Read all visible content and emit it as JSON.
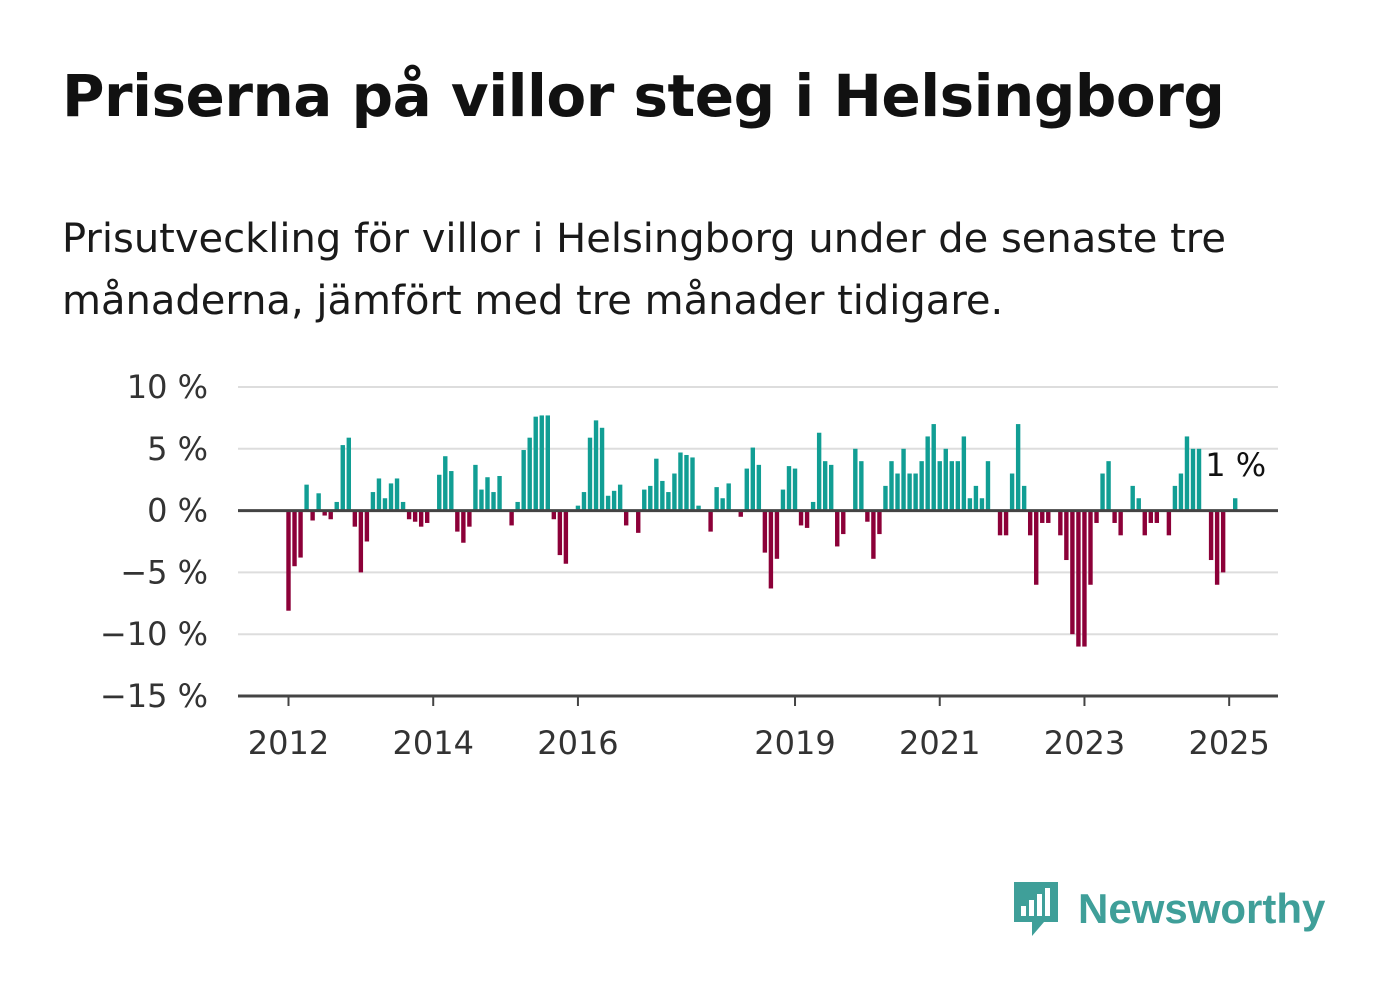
{
  "header": {
    "title": "Priserna på villor steg i Helsingborg",
    "subtitle": "Prisutveckling för villor i Helsingborg under de senaste tre månaderna, jämfört med tre månader tidigare."
  },
  "brand": {
    "name": "Newsworthy",
    "icon": "newsworthy-logo-icon",
    "color": "#3f9f99"
  },
  "chart_data": {
    "type": "bar",
    "title": "",
    "xlabel": "",
    "ylabel": "",
    "ylim": [
      -15,
      10
    ],
    "y_ticks": [
      {
        "value": 10,
        "label": "10 %"
      },
      {
        "value": 5,
        "label": "5 %"
      },
      {
        "value": 0,
        "label": "0 %"
      },
      {
        "value": -5,
        "label": "−5 %"
      },
      {
        "value": -10,
        "label": "−10 %"
      },
      {
        "value": -15,
        "label": "−15 %"
      }
    ],
    "x_ticks": [
      {
        "index": 0,
        "label": "2012"
      },
      {
        "index": 24,
        "label": "2014"
      },
      {
        "index": 48,
        "label": "2016"
      },
      {
        "index": 84,
        "label": "2019"
      },
      {
        "index": 108,
        "label": "2021"
      },
      {
        "index": 132,
        "label": "2023"
      },
      {
        "index": 156,
        "label": "2025"
      }
    ],
    "grid": true,
    "legend": "none",
    "colors": {
      "positive": "#119e94",
      "negative": "#8c0038",
      "grid": "#dddddd",
      "axis": "#444444"
    },
    "last_value_label": "1 %",
    "start": "2012-01",
    "frequency": "monthly",
    "values": [
      -8.1,
      -4.5,
      -3.8,
      2.1,
      -0.8,
      1.4,
      -0.4,
      -0.7,
      0.7,
      5.3,
      5.9,
      -1.3,
      -5.0,
      -2.5,
      1.5,
      2.6,
      1.0,
      2.2,
      2.6,
      0.7,
      -0.7,
      -0.9,
      -1.3,
      -1.0,
      0.0,
      2.9,
      4.4,
      3.2,
      -1.7,
      -2.6,
      -1.3,
      3.7,
      1.7,
      2.7,
      1.5,
      2.8,
      0.0,
      -1.2,
      0.7,
      4.9,
      5.9,
      7.6,
      7.7,
      7.7,
      -0.7,
      -3.6,
      -4.3,
      0.0,
      0.4,
      1.5,
      5.9,
      7.3,
      6.7,
      1.2,
      1.6,
      2.1,
      -1.2,
      0.0,
      -1.8,
      1.7,
      2.0,
      4.2,
      2.4,
      1.5,
      3.0,
      4.7,
      4.5,
      4.3,
      0.4,
      0.0,
      -1.7,
      1.9,
      1.0,
      2.2,
      0.0,
      -0.5,
      3.4,
      5.1,
      3.7,
      -3.4,
      -6.3,
      -3.9,
      1.7,
      3.6,
      3.4,
      -1.2,
      -1.4,
      0.7,
      6.3,
      4.0,
      3.7,
      -2.9,
      -1.9,
      0.0,
      5.0,
      4.0,
      -0.9,
      -3.9,
      -1.9,
      2.0,
      4.0,
      3.0,
      5.0,
      3.0,
      3.0,
      4.0,
      6.0,
      7.0,
      4.0,
      5.0,
      4.0,
      4.0,
      6.0,
      1.0,
      2.0,
      1.0,
      4.0,
      0.0,
      -2.0,
      -2.0,
      3.0,
      7.0,
      2.0,
      -2.0,
      -6.0,
      -1.0,
      -1.0,
      0.0,
      -2.0,
      -4.0,
      -10.0,
      -11.0,
      -11.0,
      -6.0,
      -1.0,
      3.0,
      4.0,
      -1.0,
      -2.0,
      0.0,
      2.0,
      1.0,
      -2.0,
      -1.0,
      -1.0,
      0.0,
      -2.0,
      2.0,
      3.0,
      6.0,
      5.0,
      5.0,
      0.0,
      -4.0,
      -6.0,
      -5.0,
      0.0,
      1.0
    ]
  }
}
